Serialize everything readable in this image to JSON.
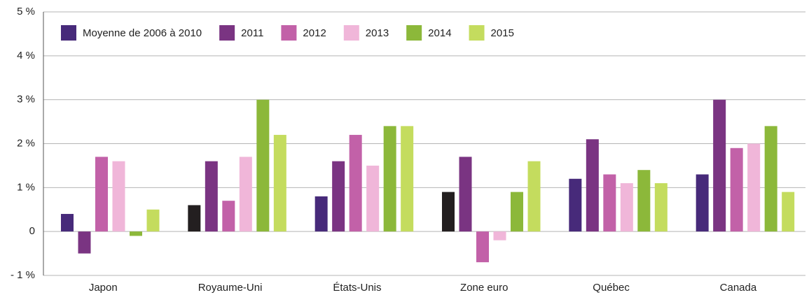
{
  "chart_data": {
    "type": "bar",
    "categories": [
      "Japon",
      "Royaume-Uni",
      "États-Unis",
      "Zone euro",
      "Québec",
      "Canada"
    ],
    "series": [
      {
        "name": "Moyenne de 2006 à 2010",
        "color": "#472a7a",
        "colors": [
          "#472a7a",
          "#231f20",
          "#472a7a",
          "#231f20",
          "#472a7a",
          "#472a7a"
        ],
        "values": [
          0.4,
          0.6,
          0.8,
          0.9,
          1.2,
          1.3
        ]
      },
      {
        "name": "2011",
        "color": "#7a3482",
        "values": [
          -0.5,
          1.6,
          1.6,
          1.7,
          2.1,
          3.0
        ]
      },
      {
        "name": "2012",
        "color": "#c261a8",
        "values": [
          1.7,
          0.7,
          2.2,
          -0.7,
          1.3,
          1.9
        ]
      },
      {
        "name": "2013",
        "color": "#f0b6d9",
        "values": [
          1.6,
          1.7,
          1.5,
          -0.2,
          1.1,
          2.0
        ]
      },
      {
        "name": "2014",
        "color": "#8cb83a",
        "values": [
          -0.1,
          3.0,
          2.4,
          0.9,
          1.4,
          2.4
        ]
      },
      {
        "name": "2015",
        "color": "#c4dc5e",
        "values": [
          0.5,
          2.2,
          2.4,
          1.6,
          1.1,
          0.9
        ]
      }
    ],
    "ylim": [
      -1,
      5
    ],
    "yticks": [
      {
        "value": -1,
        "label": "- 1 %"
      },
      0,
      {
        "value": 1,
        "label": "1 %"
      },
      {
        "value": 2,
        "label": "2 %"
      },
      {
        "value": 3,
        "label": "3 %"
      },
      {
        "value": 4,
        "label": "4 %"
      },
      {
        "value": 5,
        "label": "5 %"
      }
    ],
    "grid": true,
    "legend": "top-left"
  }
}
